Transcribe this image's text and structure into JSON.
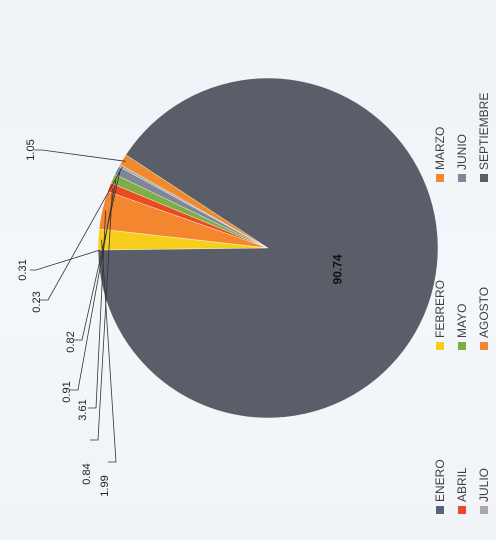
{
  "chart_data": {
    "type": "pie",
    "categories": [
      "ENERO",
      "FEBRERO",
      "MARZO",
      "ABRIL",
      "MAYO",
      "JUNIO",
      "JULIO",
      "AGOSTO",
      "SEPTIEMBRE"
    ],
    "values": [
      0.0,
      1.99,
      3.61,
      0.84,
      0.91,
      0.82,
      0.23,
      1.05,
      90.74
    ],
    "value_labels": [
      "",
      "1.99",
      "3.61",
      "0.84",
      "0.91",
      "0.82",
      "0.23",
      "1.05",
      "90.74"
    ],
    "colors": [
      "#5a6278",
      "#f5cf1b",
      "#f3862f",
      "#ea4b1f",
      "#7fae47",
      "#7d8798",
      "#a8a8a8",
      "#f08a2c",
      "#5a5e68"
    ],
    "extra_label": "0.31",
    "legend_position": "bottom",
    "title": ""
  }
}
